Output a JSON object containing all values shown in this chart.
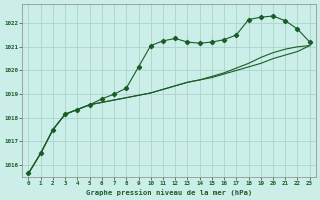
{
  "bg_color": "#cceee8",
  "grid_color": "#aad4cc",
  "line_color": "#1a5c28",
  "xlabel": "Graphe pression niveau de la mer (hPa)",
  "ylim": [
    1015.5,
    1022.8
  ],
  "yticks": [
    1016,
    1017,
    1018,
    1019,
    1020,
    1021,
    1022
  ],
  "xticks": [
    0,
    1,
    2,
    3,
    4,
    5,
    6,
    7,
    8,
    9,
    10,
    11,
    12,
    13,
    14,
    15,
    16,
    17,
    18,
    19,
    20,
    21,
    22,
    23
  ],
  "series1": [
    1015.65,
    1016.5,
    1017.5,
    1018.15,
    1018.35,
    1018.55,
    1018.8,
    1019.0,
    1019.25,
    1020.15,
    1021.05,
    1021.25,
    1021.35,
    1021.2,
    1021.15,
    1021.2,
    1021.3,
    1021.5,
    1022.15,
    1022.25,
    1022.3,
    1022.1,
    1021.75,
    1021.2
  ],
  "series2": [
    1015.65,
    1016.5,
    1017.5,
    1018.15,
    1018.35,
    1018.55,
    1018.65,
    1018.75,
    1018.85,
    1018.95,
    1019.05,
    1019.2,
    1019.35,
    1019.5,
    1019.6,
    1019.7,
    1019.85,
    1020.0,
    1020.15,
    1020.3,
    1020.5,
    1020.65,
    1020.8,
    1021.05
  ],
  "series3": [
    1015.65,
    1016.5,
    1017.5,
    1018.15,
    1018.35,
    1018.55,
    1018.65,
    1018.75,
    1018.85,
    1018.95,
    1019.05,
    1019.2,
    1019.35,
    1019.5,
    1019.6,
    1019.75,
    1019.9,
    1020.1,
    1020.3,
    1020.55,
    1020.75,
    1020.9,
    1021.0,
    1021.05
  ]
}
